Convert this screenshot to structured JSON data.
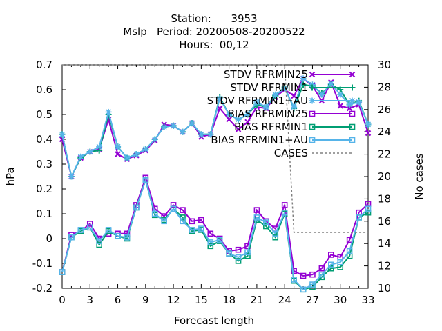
{
  "chart_data": {
    "type": "line",
    "title_lines": [
      "Station:      3953",
      "Mslp   Period: 20200508-20200522",
      "Hours:  00,12"
    ],
    "xlabel": "Forecast length",
    "ylabel": "hPa",
    "y2label": "No cases",
    "xlim": [
      0,
      33
    ],
    "ylim": [
      -0.2,
      0.7
    ],
    "y2lim": [
      10,
      30
    ],
    "xticks": [
      0,
      3,
      6,
      9,
      12,
      15,
      18,
      21,
      24,
      27,
      30,
      33
    ],
    "yticks": [
      -0.2,
      -0.1,
      0,
      0.1,
      0.2,
      0.3,
      0.4,
      0.5,
      0.6,
      0.7
    ],
    "y2ticks": [
      10,
      12,
      14,
      16,
      18,
      20,
      22,
      24,
      26,
      28,
      30
    ],
    "legend_position": "top-right",
    "x": [
      0,
      1,
      2,
      3,
      4,
      5,
      6,
      7,
      8,
      9,
      10,
      11,
      12,
      13,
      14,
      15,
      16,
      17,
      18,
      19,
      20,
      21,
      22,
      23,
      24,
      25,
      26,
      27,
      28,
      29,
      30,
      31,
      32,
      33
    ],
    "series": [
      {
        "name": "STDV RFRMIN25",
        "color": "#9400d3",
        "marker": "x",
        "axis": "y",
        "values": [
          0.4,
          0.25,
          0.325,
          0.35,
          0.36,
          0.48,
          0.34,
          0.32,
          0.335,
          0.355,
          0.395,
          0.46,
          0.455,
          0.43,
          0.465,
          0.41,
          0.42,
          0.525,
          0.48,
          0.44,
          0.47,
          0.53,
          0.525,
          0.57,
          0.6,
          0.575,
          0.645,
          0.615,
          0.555,
          0.63,
          0.535,
          0.525,
          0.54,
          0.425
        ]
      },
      {
        "name": "STDV RFRMIN1",
        "color": "#009e73",
        "marker": "+",
        "axis": "y",
        "values": [
          0.42,
          0.25,
          0.325,
          0.35,
          0.355,
          0.5,
          0.37,
          0.325,
          0.34,
          0.36,
          0.4,
          0.45,
          0.455,
          0.43,
          0.465,
          0.42,
          0.42,
          0.57,
          0.5,
          0.48,
          0.5,
          0.54,
          0.53,
          0.575,
          0.61,
          0.525,
          0.62,
          0.615,
          0.585,
          0.62,
          0.6,
          0.54,
          0.555,
          0.46
        ]
      },
      {
        "name": "STDV RFRMIN1+AU",
        "color": "#56b4e9",
        "marker": "star",
        "axis": "y",
        "values": [
          0.42,
          0.25,
          0.33,
          0.35,
          0.37,
          0.51,
          0.37,
          0.325,
          0.34,
          0.36,
          0.4,
          0.45,
          0.455,
          0.43,
          0.465,
          0.42,
          0.42,
          0.565,
          0.5,
          0.48,
          0.5,
          0.55,
          0.53,
          0.58,
          0.605,
          0.53,
          0.645,
          0.62,
          0.58,
          0.625,
          0.58,
          0.54,
          0.55,
          0.46
        ]
      },
      {
        "name": "BIAS RFRMIN25",
        "color": "#9400d3",
        "marker": "square",
        "axis": "y",
        "values": [
          -0.135,
          0.015,
          0.03,
          0.06,
          0.0,
          0.02,
          0.02,
          0.02,
          0.135,
          0.245,
          0.12,
          0.09,
          0.135,
          0.115,
          0.07,
          0.075,
          0.02,
          0.0,
          -0.05,
          -0.045,
          -0.03,
          0.115,
          0.07,
          0.04,
          0.135,
          -0.13,
          -0.15,
          -0.145,
          -0.12,
          -0.065,
          -0.075,
          -0.005,
          0.105,
          0.14
        ]
      },
      {
        "name": "BIAS RFRMIN1",
        "color": "#009e73",
        "marker": "square",
        "axis": "y",
        "values": [
          -0.135,
          0.005,
          0.03,
          0.045,
          -0.025,
          0.03,
          0.01,
          0.0,
          0.125,
          0.235,
          0.095,
          0.075,
          0.12,
          0.085,
          0.03,
          0.035,
          -0.03,
          -0.01,
          -0.06,
          -0.09,
          -0.07,
          0.075,
          0.05,
          0.005,
          0.1,
          -0.17,
          -0.205,
          -0.195,
          -0.155,
          -0.12,
          -0.115,
          -0.07,
          0.085,
          0.105
        ]
      },
      {
        "name": "BIAS RFRMIN1+AU",
        "color": "#56b4e9",
        "marker": "square",
        "axis": "y",
        "values": [
          -0.135,
          0.005,
          0.035,
          0.045,
          -0.01,
          0.035,
          0.01,
          0.005,
          0.125,
          0.235,
          0.1,
          0.07,
          0.12,
          0.07,
          0.035,
          0.04,
          -0.015,
          -0.005,
          -0.06,
          -0.075,
          -0.055,
          0.085,
          0.065,
          0.02,
          0.105,
          -0.165,
          -0.205,
          -0.185,
          -0.145,
          -0.105,
          -0.095,
          -0.05,
          0.085,
          0.12
        ]
      },
      {
        "name": "CASES",
        "color": "#808080",
        "marker": "none",
        "dash": "3,3",
        "axis": "y2",
        "values": [
          30,
          30,
          30,
          30,
          30,
          30,
          30,
          30,
          30,
          30,
          30,
          30,
          30,
          30,
          30,
          30,
          30,
          30,
          30,
          30,
          30,
          30,
          30,
          30,
          30,
          15,
          15,
          15,
          15,
          15,
          15,
          15,
          15,
          15
        ]
      }
    ]
  }
}
